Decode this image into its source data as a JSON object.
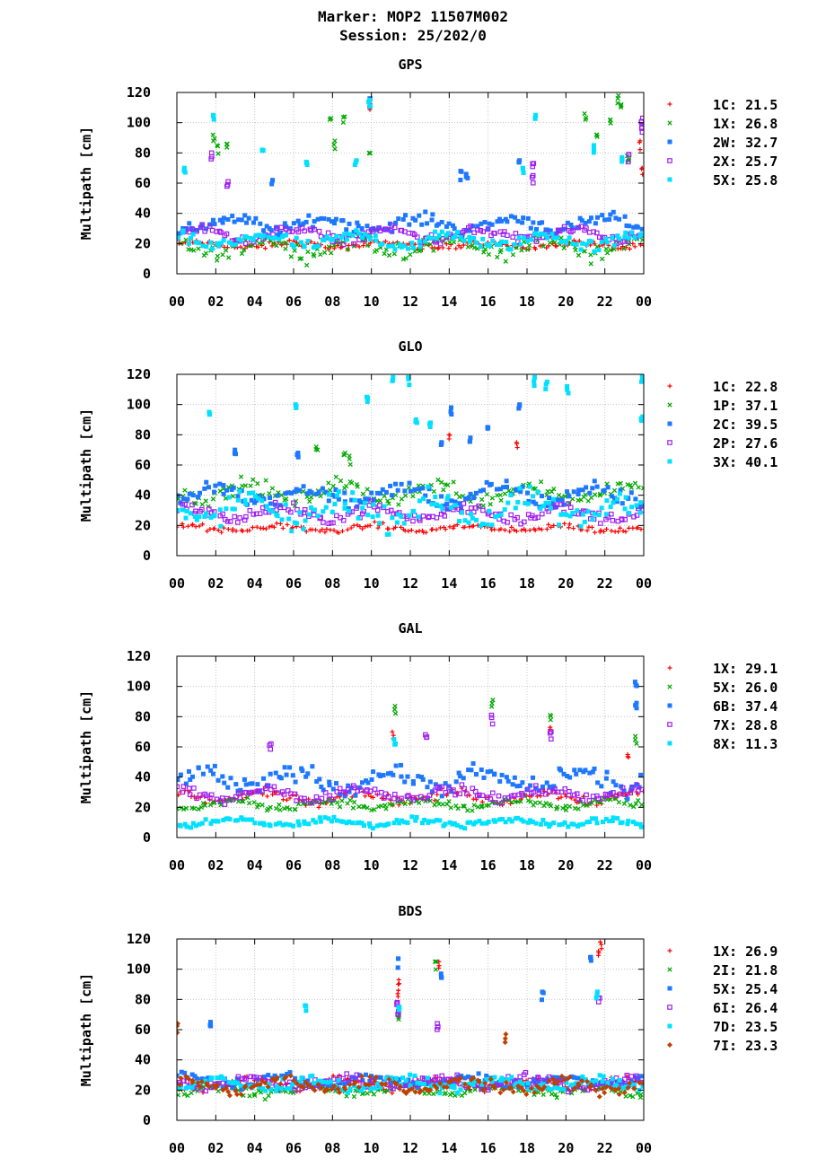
{
  "page": {
    "title_line1": "Marker: MOP2 11507M002",
    "title_line2": "Session: 25/202/0"
  },
  "chart_data": [
    {
      "type": "scatter",
      "title": "GPS",
      "ylabel": "Multipath [cm]",
      "xlabel": "",
      "xlim": [
        0,
        24
      ],
      "ylim": [
        0,
        120
      ],
      "x_ticks": [
        "00",
        "02",
        "04",
        "06",
        "08",
        "10",
        "12",
        "14",
        "16",
        "18",
        "20",
        "22",
        "00"
      ],
      "y_ticks": [
        "0",
        "20",
        "40",
        "60",
        "80",
        "100",
        "120"
      ],
      "grid": true,
      "legend_position": "right",
      "series": [
        {
          "name": "1C",
          "mean": "21.5",
          "color": "#ff0000",
          "marker": "plus",
          "base": 19,
          "spread": 3,
          "spikes": [
            [
              23.8,
              88
            ],
            [
              23.9,
              70
            ],
            [
              9.9,
              114
            ]
          ]
        },
        {
          "name": "1X",
          "mean": "26.8",
          "color": "#00aa00",
          "marker": "cross",
          "base": 18,
          "spread": 8,
          "spikes": [
            [
              1.9,
              92
            ],
            [
              2.1,
              85
            ],
            [
              2.6,
              86
            ],
            [
              7.9,
              103
            ],
            [
              8.1,
              88
            ],
            [
              8.6,
              104
            ],
            [
              9.9,
              80
            ],
            [
              21.0,
              106
            ],
            [
              21.6,
              92
            ],
            [
              22.3,
              102
            ],
            [
              22.7,
              118
            ],
            [
              22.8,
              112
            ],
            [
              23.2,
              78
            ]
          ]
        },
        {
          "name": "2W",
          "mean": "32.7",
          "color": "#1e78ff",
          "marker": "square",
          "base": 33,
          "spread": 6,
          "spikes": [
            [
              4.9,
              62
            ],
            [
              14.6,
              68
            ],
            [
              14.9,
              66
            ],
            [
              17.6,
              75
            ],
            [
              9.9,
              116
            ]
          ]
        },
        {
          "name": "2X",
          "mean": "25.7",
          "color": "#a020f0",
          "marker": "square-open",
          "base": 26,
          "spread": 5,
          "spikes": [
            [
              1.8,
              80
            ],
            [
              2.6,
              61
            ],
            [
              18.3,
              73
            ],
            [
              18.3,
              65
            ],
            [
              23.9,
              103
            ],
            [
              23.9,
              97
            ],
            [
              23.2,
              79
            ]
          ]
        },
        {
          "name": "5X",
          "mean": "25.8",
          "color": "#00e0ff",
          "marker": "square",
          "base": 22,
          "spread": 6,
          "spikes": [
            [
              0.4,
              70
            ],
            [
              1.9,
              105
            ],
            [
              4.4,
              82
            ],
            [
              6.7,
              74
            ],
            [
              9.2,
              75
            ],
            [
              9.9,
              115
            ],
            [
              17.8,
              70
            ],
            [
              18.4,
              105
            ],
            [
              21.4,
              85
            ],
            [
              22.9,
              77
            ]
          ]
        }
      ]
    },
    {
      "type": "scatter",
      "title": "GLO",
      "ylabel": "Multipath [cm]",
      "xlabel": "",
      "xlim": [
        0,
        24
      ],
      "ylim": [
        0,
        120
      ],
      "x_ticks": [
        "00",
        "02",
        "04",
        "06",
        "08",
        "10",
        "12",
        "14",
        "16",
        "18",
        "20",
        "22",
        "00"
      ],
      "y_ticks": [
        "0",
        "20",
        "40",
        "60",
        "80",
        "100",
        "120"
      ],
      "grid": true,
      "legend_position": "right",
      "series": [
        {
          "name": "1C",
          "mean": "22.8",
          "color": "#ff0000",
          "marker": "plus",
          "base": 18,
          "spread": 3,
          "spikes": [
            [
              14.0,
              80
            ],
            [
              17.5,
              75
            ]
          ]
        },
        {
          "name": "1P",
          "mean": "37.1",
          "color": "#00aa00",
          "marker": "cross",
          "base": 42,
          "spread": 8,
          "spikes": [
            [
              7.2,
              72
            ],
            [
              8.6,
              68
            ],
            [
              8.9,
              66
            ]
          ]
        },
        {
          "name": "2C",
          "mean": "39.5",
          "color": "#1e78ff",
          "marker": "square",
          "base": 40,
          "spread": 8,
          "spikes": [
            [
              3.0,
              70
            ],
            [
              6.2,
              68
            ],
            [
              13.6,
              75
            ],
            [
              14.1,
              98
            ],
            [
              15.1,
              78
            ],
            [
              16.0,
              85
            ],
            [
              17.6,
              100
            ]
          ]
        },
        {
          "name": "2P",
          "mean": "27.6",
          "color": "#a020f0",
          "marker": "square-open",
          "base": 28,
          "spread": 6,
          "spikes": []
        },
        {
          "name": "3X",
          "mean": "40.1",
          "color": "#00e0ff",
          "marker": "square",
          "base": 30,
          "spread": 12,
          "spikes": [
            [
              1.7,
              95
            ],
            [
              6.1,
              100
            ],
            [
              9.8,
              105
            ],
            [
              11.1,
              118
            ],
            [
              11.9,
              118
            ],
            [
              12.3,
              90
            ],
            [
              13.0,
              88
            ],
            [
              18.4,
              118
            ],
            [
              19.0,
              115
            ],
            [
              20.1,
              112
            ],
            [
              23.9,
              119
            ],
            [
              23.9,
              92
            ]
          ]
        }
      ]
    },
    {
      "type": "scatter",
      "title": "GAL",
      "ylabel": "Multipath [cm]",
      "xlabel": "",
      "xlim": [
        0,
        24
      ],
      "ylim": [
        0,
        120
      ],
      "x_ticks": [
        "00",
        "02",
        "04",
        "06",
        "08",
        "10",
        "12",
        "14",
        "16",
        "18",
        "20",
        "22",
        "00"
      ],
      "y_ticks": [
        "0",
        "20",
        "40",
        "60",
        "80",
        "100",
        "120"
      ],
      "grid": true,
      "legend_position": "right",
      "series": [
        {
          "name": "1X",
          "mean": "29.1",
          "color": "#ff0000",
          "marker": "plus",
          "base": 27,
          "spread": 5,
          "spikes": [
            [
              11.1,
              70
            ],
            [
              19.2,
              73
            ],
            [
              23.2,
              55
            ]
          ]
        },
        {
          "name": "5X",
          "mean": "26.0",
          "color": "#00aa00",
          "marker": "cross",
          "base": 22,
          "spread": 4,
          "spikes": [
            [
              11.2,
              87
            ],
            [
              16.2,
              91
            ],
            [
              19.2,
              81
            ],
            [
              23.6,
              67
            ]
          ]
        },
        {
          "name": "6B",
          "mean": "37.4",
          "color": "#1e78ff",
          "marker": "square",
          "base": 38,
          "spread": 9,
          "spikes": [
            [
              23.6,
              103
            ],
            [
              23.6,
              89
            ]
          ]
        },
        {
          "name": "7X",
          "mean": "28.8",
          "color": "#a020f0",
          "marker": "square-open",
          "base": 29,
          "spread": 5,
          "spikes": [
            [
              4.8,
              62
            ],
            [
              12.8,
              68
            ],
            [
              16.2,
              81
            ],
            [
              19.2,
              70
            ]
          ]
        },
        {
          "name": "8X",
          "mean": "11.3",
          "color": "#00e0ff",
          "marker": "square",
          "base": 10,
          "spread": 3,
          "spikes": [
            [
              11.2,
              65
            ]
          ]
        }
      ]
    },
    {
      "type": "scatter",
      "title": "BDS",
      "ylabel": "Multipath [cm]",
      "xlabel": "",
      "xlim": [
        0,
        24
      ],
      "ylim": [
        0,
        120
      ],
      "x_ticks": [
        "00",
        "02",
        "04",
        "06",
        "08",
        "10",
        "12",
        "14",
        "16",
        "18",
        "20",
        "22",
        "00"
      ],
      "y_ticks": [
        "0",
        "20",
        "40",
        "60",
        "80",
        "100",
        "120"
      ],
      "grid": true,
      "legend_position": "right",
      "series": [
        {
          "name": "1X",
          "mean": "26.9",
          "color": "#ff0000",
          "marker": "plus",
          "base": 24,
          "spread": 5,
          "spikes": [
            [
              11.4,
              93
            ],
            [
              11.4,
              86
            ],
            [
              13.5,
              105
            ],
            [
              21.8,
              118
            ],
            [
              21.7,
              112
            ]
          ]
        },
        {
          "name": "2I",
          "mean": "21.8",
          "color": "#00aa00",
          "marker": "cross",
          "base": 20,
          "spread": 4,
          "spikes": [
            [
              13.3,
              105
            ],
            [
              11.4,
              70
            ]
          ]
        },
        {
          "name": "5X",
          "mean": "25.4",
          "color": "#1e78ff",
          "marker": "square",
          "base": 26,
          "spread": 5,
          "spikes": [
            [
              1.7,
              65
            ],
            [
              11.4,
              107
            ],
            [
              13.6,
              97
            ],
            [
              18.8,
              85
            ],
            [
              21.3,
              108
            ]
          ]
        },
        {
          "name": "6I",
          "mean": "26.4",
          "color": "#a020f0",
          "marker": "square-open",
          "base": 25,
          "spread": 5,
          "spikes": [
            [
              11.3,
              78
            ],
            [
              11.4,
              72
            ],
            [
              13.4,
              64
            ],
            [
              21.7,
              81
            ]
          ]
        },
        {
          "name": "7D",
          "mean": "23.5",
          "color": "#00e0ff",
          "marker": "square",
          "base": 24,
          "spread": 5,
          "spikes": [
            [
              6.6,
              76
            ],
            [
              11.4,
              75
            ],
            [
              21.6,
              85
            ]
          ]
        },
        {
          "name": "7I",
          "mean": "23.3",
          "color": "#c04000",
          "marker": "diamond",
          "base": 23,
          "spread": 6,
          "spikes": [
            [
              0.05,
              64
            ],
            [
              16.9,
              57
            ]
          ]
        }
      ]
    }
  ]
}
